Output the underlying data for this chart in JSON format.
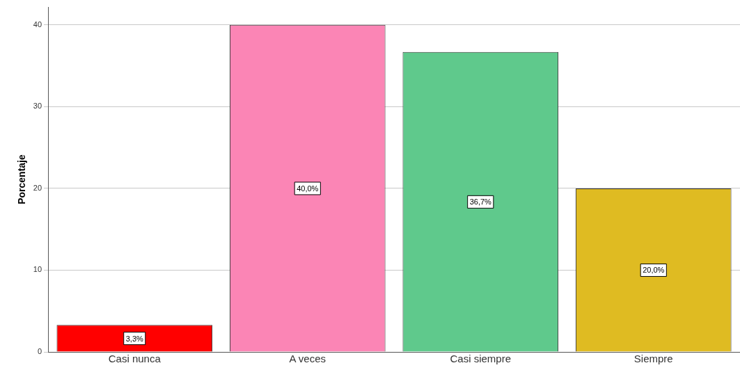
{
  "chart_data": {
    "type": "bar",
    "ylabel": "Porcentaje",
    "categories": [
      "Casi nunca",
      "A veces",
      "Casi siempre",
      "Siempre"
    ],
    "values": [
      3.3,
      40.0,
      36.7,
      20.0
    ],
    "colors": [
      "#ff0000",
      "#fb85b5",
      "#5fc98c",
      "#dfbb22"
    ],
    "value_labels": [
      "3,3%",
      "40,0%",
      "36,7%",
      "20,0%"
    ],
    "ylim": [
      0,
      42.2
    ],
    "yticks": [
      0,
      10,
      20,
      30,
      40
    ],
    "grid": "y",
    "legend": false
  }
}
